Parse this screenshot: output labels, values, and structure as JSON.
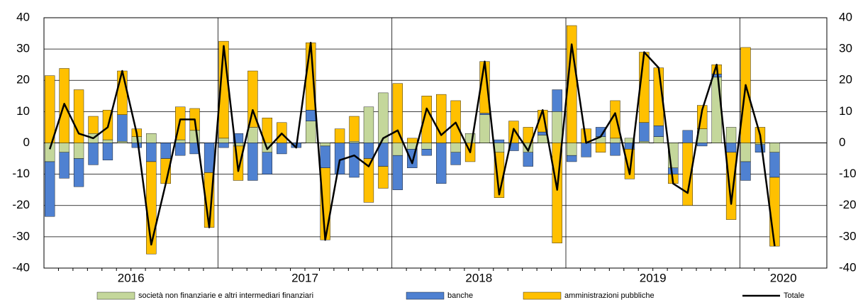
{
  "chart_data": {
    "type": "stacked-bar-line",
    "categories": [
      null,
      null,
      null,
      null,
      null,
      null,
      null,
      null,
      null,
      null,
      null,
      null,
      null,
      null,
      null,
      null,
      null,
      null,
      null,
      null,
      null,
      null,
      null,
      null,
      null,
      null,
      null,
      null,
      null,
      null,
      null,
      null,
      null,
      null,
      null,
      null,
      null,
      null,
      null,
      null,
      null,
      null,
      null,
      null,
      null,
      null,
      null,
      null,
      null,
      null,
      null
    ],
    "year_labels": [
      "2016",
      "2017",
      "2018",
      "2019",
      "2020"
    ],
    "series": [
      {
        "name": "società non finanziarie e altri intermediari finanziari",
        "color": "#c4d79b",
        "kind": "bar",
        "values": [
          -6,
          -3,
          -5,
          3,
          1,
          0.5,
          2,
          3,
          0,
          1,
          4,
          0,
          1.5,
          -1,
          5,
          -3,
          0,
          0,
          7,
          -1,
          0,
          0.5,
          11.5,
          16,
          -4,
          -2,
          -2,
          0,
          -3,
          3,
          9,
          -3,
          0,
          -3,
          2.5,
          10,
          -4,
          0,
          2,
          1.5,
          1.5,
          0.5,
          2,
          -8,
          0,
          4.5,
          21,
          5,
          -6,
          -0.5,
          -3
        ]
      },
      {
        "name": "banche",
        "color": "#4f81d1",
        "kind": "bar",
        "values": [
          -17.5,
          -8.3,
          -9,
          -7,
          -5.5,
          8.5,
          -1.5,
          -6,
          -5,
          -4,
          -3.5,
          -9.5,
          -1.5,
          3,
          -12,
          -7,
          -3.5,
          -1.5,
          3.5,
          -7,
          -10,
          -11,
          -5,
          -7.5,
          -11,
          -6,
          -2,
          -13,
          -4,
          0,
          0.5,
          1,
          -2.5,
          -4.5,
          1,
          7,
          -2,
          -4.5,
          3,
          -4,
          -2,
          6,
          3.5,
          -2,
          4,
          -1,
          1,
          -3,
          -6,
          -2.5,
          -8
        ]
      },
      {
        "name": "amministrazioni pubbliche",
        "color": "#ffc000",
        "kind": "bar",
        "values": [
          21.5,
          23.8,
          17,
          5.5,
          9.5,
          14,
          2.5,
          -29.5,
          -8,
          10.5,
          7,
          -17.5,
          31,
          -11,
          18,
          8,
          6.5,
          0,
          21.5,
          -23,
          4.5,
          8,
          -14,
          -7,
          19,
          1.5,
          15,
          15.5,
          13.5,
          -6,
          16.5,
          -14.5,
          7,
          5,
          7,
          -32,
          37.5,
          4.5,
          -3,
          12,
          -9.5,
          22.5,
          18.5,
          -3,
          -20,
          7.5,
          3,
          -21.5,
          30.5,
          5,
          -22
        ]
      },
      {
        "name": "Totale",
        "color": "#000000",
        "kind": "line",
        "values": [
          -2,
          12.5,
          3,
          1.5,
          5,
          23,
          3,
          -32.5,
          -13,
          7.5,
          7.5,
          -27,
          31,
          -9,
          10.5,
          -2,
          3,
          -1.5,
          32,
          -31,
          -5.5,
          -4,
          -7.5,
          1.5,
          4,
          -6.5,
          11,
          2.5,
          6.5,
          -3,
          26,
          -16.5,
          4.5,
          -2.5,
          10.5,
          -15,
          31.5,
          0,
          2,
          9.5,
          -10,
          29,
          24,
          -13,
          -16,
          10.5,
          25,
          -19.5,
          18.5,
          2.5,
          -33
        ]
      }
    ],
    "ylim": [
      -40,
      40
    ],
    "yticks": [
      -40,
      -30,
      -20,
      -10,
      0,
      10,
      20,
      30,
      40
    ],
    "y2lim": [
      -40,
      40
    ],
    "y2ticks": [
      -40,
      -30,
      -20,
      -10,
      0,
      10,
      20,
      30,
      40
    ],
    "grid": true,
    "legend": "bottom"
  }
}
